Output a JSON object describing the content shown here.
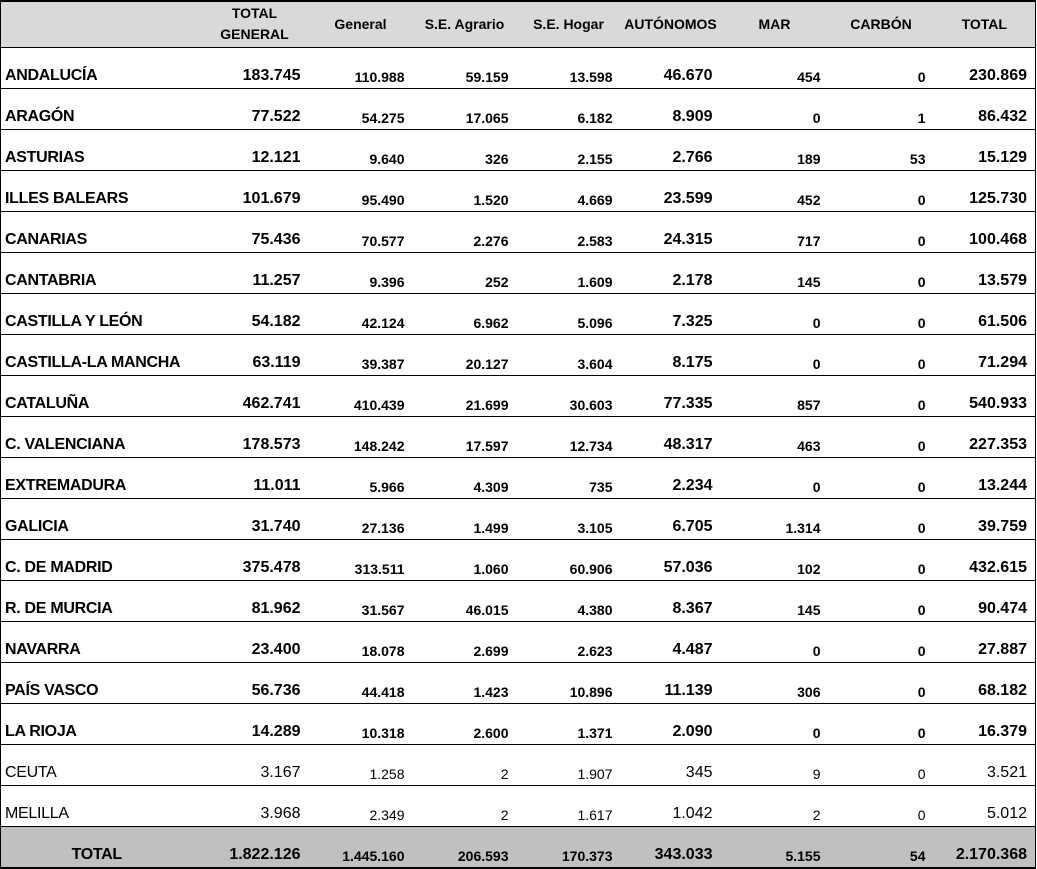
{
  "headers": [
    "",
    "TOTAL GENERAL",
    "General",
    "S.E. Agrario",
    "S.E. Hogar",
    "AUTÓNOMOS",
    "MAR",
    "CARBÓN",
    "TOTAL"
  ],
  "rows": [
    {
      "name": "ANDALUCÍA",
      "values": [
        "183.745",
        "110.988",
        "59.159",
        "13.598",
        "46.670",
        "454",
        "0",
        "230.869"
      ]
    },
    {
      "name": "ARAGÓN",
      "values": [
        "77.522",
        "54.275",
        "17.065",
        "6.182",
        "8.909",
        "0",
        "1",
        "86.432"
      ]
    },
    {
      "name": "ASTURIAS",
      "values": [
        "12.121",
        "9.640",
        "326",
        "2.155",
        "2.766",
        "189",
        "53",
        "15.129"
      ]
    },
    {
      "name": "ILLES BALEARS",
      "values": [
        "101.679",
        "95.490",
        "1.520",
        "4.669",
        "23.599",
        "452",
        "0",
        "125.730"
      ]
    },
    {
      "name": "CANARIAS",
      "values": [
        "75.436",
        "70.577",
        "2.276",
        "2.583",
        "24.315",
        "717",
        "0",
        "100.468"
      ]
    },
    {
      "name": "CANTABRIA",
      "values": [
        "11.257",
        "9.396",
        "252",
        "1.609",
        "2.178",
        "145",
        "0",
        "13.579"
      ]
    },
    {
      "name": "CASTILLA Y LEÓN",
      "values": [
        "54.182",
        "42.124",
        "6.962",
        "5.096",
        "7.325",
        "0",
        "0",
        "61.506"
      ]
    },
    {
      "name": "CASTILLA-LA MANCHA",
      "values": [
        "63.119",
        "39.387",
        "20.127",
        "3.604",
        "8.175",
        "0",
        "0",
        "71.294"
      ]
    },
    {
      "name": "CATALUÑA",
      "values": [
        "462.741",
        "410.439",
        "21.699",
        "30.603",
        "77.335",
        "857",
        "0",
        "540.933"
      ]
    },
    {
      "name": "C. VALENCIANA",
      "values": [
        "178.573",
        "148.242",
        "17.597",
        "12.734",
        "48.317",
        "463",
        "0",
        "227.353"
      ]
    },
    {
      "name": "EXTREMADURA",
      "values": [
        "11.011",
        "5.966",
        "4.309",
        "735",
        "2.234",
        "0",
        "0",
        "13.244"
      ]
    },
    {
      "name": "GALICIA",
      "values": [
        "31.740",
        "27.136",
        "1.499",
        "3.105",
        "6.705",
        "1.314",
        "0",
        "39.759"
      ]
    },
    {
      "name": "C. DE MADRID",
      "values": [
        "375.478",
        "313.511",
        "1.060",
        "60.906",
        "57.036",
        "102",
        "0",
        "432.615"
      ]
    },
    {
      "name": "R. DE MURCIA",
      "values": [
        "81.962",
        "31.567",
        "46.015",
        "4.380",
        "8.367",
        "145",
        "0",
        "90.474"
      ]
    },
    {
      "name": "NAVARRA",
      "values": [
        "23.400",
        "18.078",
        "2.699",
        "2.623",
        "4.487",
        "0",
        "0",
        "27.887"
      ]
    },
    {
      "name": "PAÍS VASCO",
      "values": [
        "56.736",
        "44.418",
        "1.423",
        "10.896",
        "11.139",
        "306",
        "0",
        "68.182"
      ]
    },
    {
      "name": "LA RIOJA",
      "values": [
        "14.289",
        "10.318",
        "2.600",
        "1.371",
        "2.090",
        "0",
        "0",
        "16.379"
      ]
    },
    {
      "name": "CEUTA",
      "values": [
        "3.167",
        "1.258",
        "2",
        "1.907",
        "345",
        "9",
        "0",
        "3.521"
      ],
      "light": true
    },
    {
      "name": "MELILLA",
      "values": [
        "3.968",
        "2.349",
        "2",
        "1.617",
        "1.042",
        "2",
        "0",
        "5.012"
      ],
      "light": true
    }
  ],
  "total": {
    "name": "TOTAL",
    "values": [
      "1.822.126",
      "1.445.160",
      "206.593",
      "170.373",
      "343.033",
      "5.155",
      "54",
      "2.170.368"
    ]
  },
  "colors": {
    "header_bg": "#d9d9d9",
    "total_bg": "#c0c0c0"
  }
}
